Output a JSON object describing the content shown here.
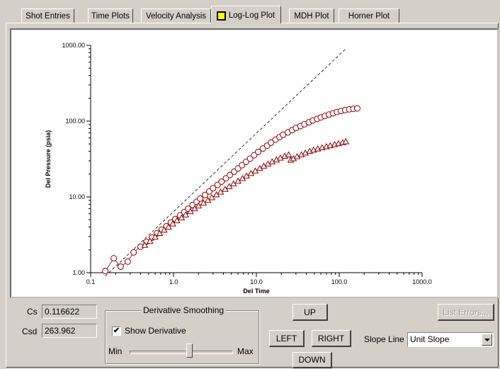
{
  "tabs": [
    {
      "label": "Shot Entries"
    },
    {
      "label": "Time Plots"
    },
    {
      "label": "Velocity Analysis"
    },
    {
      "label": "Log-Log Plot"
    },
    {
      "label": "MDH Plot"
    },
    {
      "label": "Horner Plot"
    }
  ],
  "active_tab": "Log-Log Plot",
  "chart_data": {
    "type": "scatter",
    "xscale": "log",
    "yscale": "log",
    "xlim": [
      0.1,
      1000
    ],
    "ylim": [
      1,
      1000
    ],
    "xlabel": "Del Time",
    "ylabel": "Del Pressure (psia)",
    "xticks": [
      "0.1",
      "1.0",
      "10.0",
      "100.0",
      "1000.0"
    ],
    "yticks": [
      "1.00",
      "10.00",
      "100.00",
      "1000.00"
    ],
    "grid": false,
    "series": [
      {
        "marker": "circle",
        "color": "#8b0000",
        "x": [
          0.15,
          0.19,
          0.23,
          0.28,
          0.33,
          0.4,
          0.47,
          0.55,
          0.63,
          0.72,
          0.82,
          0.93,
          1.05,
          1.2,
          1.35,
          1.5,
          1.7,
          1.9,
          2.1,
          2.4,
          2.7,
          3.0,
          3.4,
          3.8,
          4.3,
          4.8,
          5.4,
          6.0,
          6.7,
          7.5,
          8.4,
          9.4,
          10.5,
          12,
          13.5,
          15,
          17,
          19,
          21,
          24,
          27,
          30,
          34,
          38,
          43,
          48,
          54,
          60,
          67,
          75,
          84,
          94,
          105,
          118,
          132,
          148,
          165
        ],
        "y": [
          1.05,
          1.55,
          1.2,
          1.4,
          1.85,
          2.2,
          2.55,
          2.9,
          3.3,
          3.7,
          4.1,
          4.6,
          5.1,
          5.7,
          6.3,
          7.0,
          7.8,
          8.6,
          9.5,
          10.6,
          11.8,
          13.0,
          14.4,
          15.9,
          17.6,
          19.5,
          21.5,
          23.7,
          26.2,
          29.0,
          32.0,
          35.5,
          39.2,
          43.5,
          47.5,
          52.0,
          57.0,
          61.5,
          66.0,
          71.0,
          76.0,
          81.0,
          86.0,
          91.0,
          96.5,
          102,
          107,
          112,
          117,
          122,
          127,
          132,
          136,
          140,
          143,
          145,
          147
        ]
      },
      {
        "marker": "triangle",
        "color": "#8b0000",
        "x": [
          0.45,
          0.52,
          0.6,
          0.68,
          0.77,
          0.87,
          0.98,
          1.1,
          1.25,
          1.4,
          1.6,
          1.8,
          2.0,
          2.3,
          2.6,
          2.9,
          3.3,
          3.7,
          4.2,
          4.7,
          5.3,
          6.0,
          6.8,
          7.6,
          8.6,
          9.7,
          11,
          12.3,
          13.8,
          15.5,
          17.5,
          19.5,
          22,
          24.5,
          26,
          28,
          31,
          35,
          39,
          44,
          49,
          55,
          62,
          70,
          78,
          88,
          98,
          110,
          120
        ],
        "y": [
          2.3,
          2.6,
          2.95,
          3.3,
          3.65,
          4.0,
          4.4,
          4.85,
          5.3,
          5.8,
          6.4,
          7.0,
          7.6,
          8.3,
          9.0,
          9.8,
          10.7,
          11.6,
          12.6,
          13.7,
          14.9,
          16.1,
          17.5,
          18.9,
          20.4,
          22.0,
          23.8,
          25.5,
          27.2,
          29.0,
          30.8,
          32.6,
          34.5,
          36.0,
          30.5,
          32.0,
          34.0,
          36.0,
          38.0,
          40.0,
          41.5,
          43.0,
          44.5,
          46.0,
          47.5,
          49.0,
          50.5,
          52.0,
          53.5
        ]
      }
    ],
    "reference_line": {
      "style": "dashed",
      "label": "Unit Slope",
      "points": [
        [
          0.15,
          0.9
        ],
        [
          120,
          900
        ]
      ]
    }
  },
  "fields": {
    "cs_label": "Cs",
    "cs_value": "0.116622",
    "csd_label": "Csd",
    "csd_value": "263.962"
  },
  "smoothing": {
    "title": "Derivative Smoothing",
    "show_derivative_label": "Show Derivative",
    "show_derivative_checked": true,
    "min_label": "Min",
    "max_label": "Max",
    "level": 0.58
  },
  "nav": {
    "up": "UP",
    "left": "LEFT",
    "right": "RIGHT",
    "down": "DOWN"
  },
  "list_errors": "List Errors...",
  "slope_line": {
    "label": "Slope Line",
    "selected": "Unit Slope"
  }
}
